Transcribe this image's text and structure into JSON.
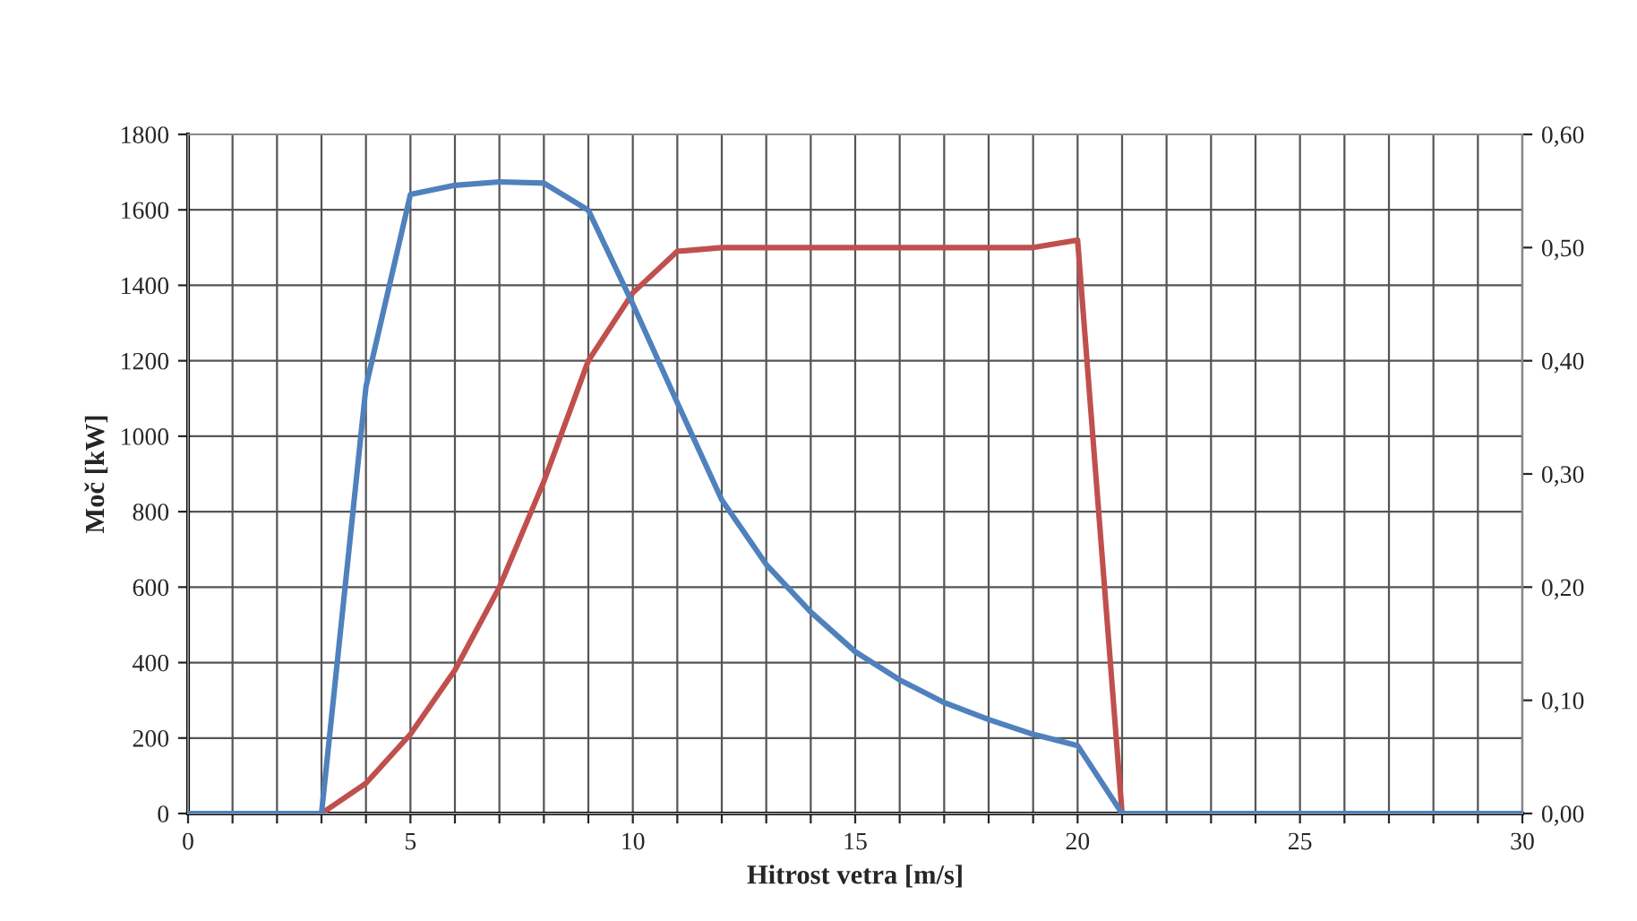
{
  "chart_data": {
    "type": "line",
    "xlabel": "Hitrost vetra [m/s]",
    "ylabel": "Moč [kW]",
    "x": [
      0,
      1,
      2,
      3,
      4,
      5,
      6,
      7,
      8,
      9,
      10,
      11,
      12,
      13,
      14,
      15,
      16,
      17,
      18,
      19,
      20,
      21,
      22,
      23,
      24,
      25,
      26,
      27,
      28,
      29,
      30
    ],
    "series": [
      {
        "color": "#c0504d",
        "x": [
          3,
          4,
          5,
          6,
          7,
          8,
          9,
          10,
          11,
          12,
          13,
          14,
          15,
          16,
          17,
          18,
          19,
          20,
          21
        ],
        "values": [
          0,
          80,
          210,
          380,
          600,
          880,
          1200,
          1380,
          1490,
          1500,
          1500,
          1500,
          1500,
          1500,
          1500,
          1500,
          1500,
          1520,
          0
        ]
      },
      {
        "color": "#4f81bd",
        "axis": "y2",
        "values": [
          0,
          0,
          0,
          0,
          0.377,
          0.547,
          0.555,
          0.558,
          0.557,
          0.533,
          0.45,
          0.363,
          0.277,
          0.22,
          0.178,
          0.143,
          0.118,
          0.098,
          0.083,
          0.07,
          0.06,
          0,
          0,
          0,
          0,
          0,
          0,
          0,
          0,
          0,
          0
        ]
      }
    ],
    "xlim": [
      0,
      30
    ],
    "xticks": [
      0,
      {
        "value": 1,
        "label": null
      },
      {
        "value": 2,
        "label": null
      },
      {
        "value": 3,
        "label": null
      },
      {
        "value": 4,
        "label": null
      },
      5,
      {
        "value": 6,
        "label": null
      },
      {
        "value": 7,
        "label": null
      },
      {
        "value": 8,
        "label": null
      },
      {
        "value": 9,
        "label": null
      },
      10,
      {
        "value": 11,
        "label": null
      },
      {
        "value": 12,
        "label": null
      },
      {
        "value": 13,
        "label": null
      },
      {
        "value": 14,
        "label": null
      },
      15,
      {
        "value": 16,
        "label": null
      },
      {
        "value": 17,
        "label": null
      },
      {
        "value": 18,
        "label": null
      },
      {
        "value": 19,
        "label": null
      },
      20,
      {
        "value": 21,
        "label": null
      },
      {
        "value": 22,
        "label": null
      },
      {
        "value": 23,
        "label": null
      },
      {
        "value": 24,
        "label": null
      },
      25,
      {
        "value": 26,
        "label": null
      },
      {
        "value": 27,
        "label": null
      },
      {
        "value": 28,
        "label": null
      },
      {
        "value": 29,
        "label": null
      },
      30
    ],
    "ylim": [
      0,
      1800
    ],
    "yticks": [
      0,
      200,
      400,
      600,
      800,
      1000,
      1200,
      1400,
      1600,
      1800
    ],
    "y2lim": [
      0,
      0.6
    ],
    "y2ticks": [
      {
        "value": 0,
        "label": "0,00"
      },
      {
        "value": 0.1,
        "label": "0,10"
      },
      {
        "value": 0.2,
        "label": "0,20"
      },
      {
        "value": 0.3,
        "label": "0,30"
      },
      {
        "value": 0.4,
        "label": "0,40"
      },
      {
        "value": 0.5,
        "label": "0,50"
      },
      {
        "value": 0.6,
        "label": "0,60"
      }
    ],
    "grid": true,
    "marker": "none",
    "line_style": "solid"
  }
}
